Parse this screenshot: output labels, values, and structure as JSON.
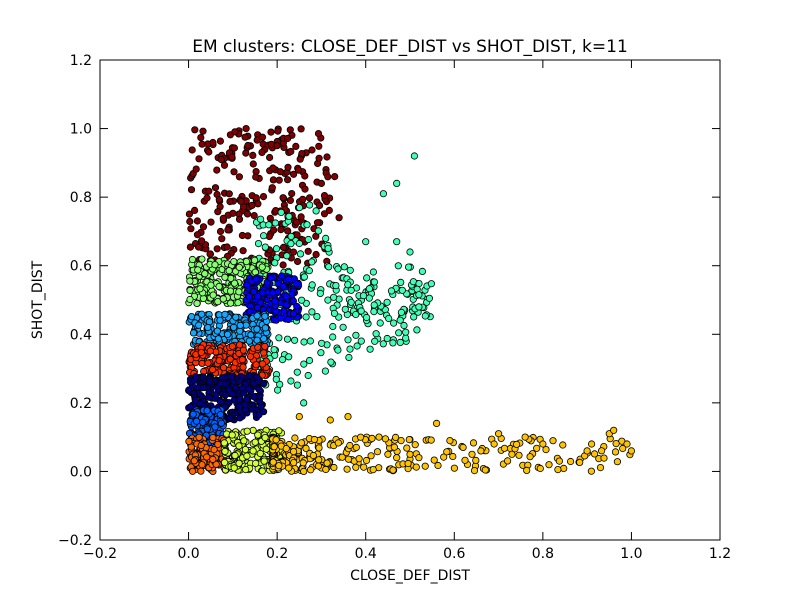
{
  "chart_data": {
    "type": "scatter",
    "title": "EM clusters: CLOSE_DEF_DIST vs SHOT_DIST, k=11",
    "xlabel": "CLOSE_DEF_DIST",
    "ylabel": "SHOT_DIST",
    "xlim": [
      -0.2,
      1.2
    ],
    "ylim": [
      -0.2,
      1.2
    ],
    "xticks": [
      "−0.2",
      "0.0",
      "0.2",
      "0.4",
      "0.6",
      "0.8",
      "1.0",
      "1.2"
    ],
    "yticks": [
      "−0.2",
      "0.0",
      "0.2",
      "0.4",
      "0.6",
      "0.8",
      "1.0",
      "1.2"
    ],
    "grid": false,
    "legend": "none",
    "marker_edge_color": "#000000",
    "clusters": [
      {
        "color": "#7f0000",
        "region": "top dense band",
        "x_range": [
          0.0,
          0.32
        ],
        "y_range": [
          0.6,
          1.0
        ]
      },
      {
        "color": "#40ffb7",
        "region": "right wedge",
        "x_range": [
          0.15,
          0.55
        ],
        "y_range": [
          0.2,
          0.92
        ]
      },
      {
        "color": "#87ff70",
        "region": "upper-middle",
        "x_range": [
          0.0,
          0.18
        ],
        "y_range": [
          0.49,
          0.62
        ]
      },
      {
        "color": "#0000ff",
        "region": "blue blob",
        "x_range": [
          0.13,
          0.25
        ],
        "y_range": [
          0.44,
          0.57
        ]
      },
      {
        "color": "#16a8ff",
        "region": "middle band",
        "x_range": [
          0.0,
          0.18
        ],
        "y_range": [
          0.37,
          0.46
        ]
      },
      {
        "color": "#ff3000",
        "region": "lower-middle band",
        "x_range": [
          0.0,
          0.18
        ],
        "y_range": [
          0.28,
          0.37
        ]
      },
      {
        "color": "#00007f",
        "region": "dark navy band",
        "x_range": [
          0.0,
          0.17
        ],
        "y_range": [
          0.15,
          0.28
        ]
      },
      {
        "color": "#0062ff",
        "region": "lower blue band",
        "x_range": [
          0.0,
          0.08
        ],
        "y_range": [
          0.08,
          0.18
        ]
      },
      {
        "color": "#ff6a00",
        "region": "bottom-left",
        "x_range": [
          0.0,
          0.09
        ],
        "y_range": [
          0.0,
          0.1
        ]
      },
      {
        "color": "#d0ff37",
        "region": "bottom-middle",
        "x_range": [
          0.08,
          0.21
        ],
        "y_range": [
          0.0,
          0.12
        ]
      },
      {
        "color": "#ffc300",
        "region": "bottom-right tail",
        "x_range": [
          0.19,
          1.0
        ],
        "y_range": [
          0.0,
          0.16
        ]
      }
    ],
    "outliers": [
      {
        "color": "#7f0000",
        "x": 0.13,
        "y": 1.0
      },
      {
        "color": "#7f0000",
        "x": 0.2,
        "y": 0.95
      },
      {
        "color": "#7f0000",
        "x": 0.3,
        "y": 0.84
      },
      {
        "color": "#7f0000",
        "x": 0.33,
        "y": 0.86
      },
      {
        "color": "#7f0000",
        "x": 0.34,
        "y": 0.74
      },
      {
        "color": "#40ffb7",
        "x": 0.51,
        "y": 0.92
      },
      {
        "color": "#40ffb7",
        "x": 0.47,
        "y": 0.84
      },
      {
        "color": "#40ffb7",
        "x": 0.44,
        "y": 0.81
      },
      {
        "color": "#40ffb7",
        "x": 0.4,
        "y": 0.67
      },
      {
        "color": "#40ffb7",
        "x": 0.47,
        "y": 0.67
      },
      {
        "color": "#40ffb7",
        "x": 0.5,
        "y": 0.64
      },
      {
        "color": "#40ffb7",
        "x": 0.52,
        "y": 0.48
      },
      {
        "color": "#40ffb7",
        "x": 0.39,
        "y": 0.38
      },
      {
        "color": "#40ffb7",
        "x": 0.26,
        "y": 0.2
      },
      {
        "color": "#ffc300",
        "x": 0.56,
        "y": 0.14
      },
      {
        "color": "#ffc300",
        "x": 0.59,
        "y": 0.09
      },
      {
        "color": "#ffc300",
        "x": 0.62,
        "y": 0.07
      },
      {
        "color": "#ffc300",
        "x": 0.64,
        "y": 0.05
      },
      {
        "color": "#ffc300",
        "x": 0.66,
        "y": 0.06
      },
      {
        "color": "#ffc300",
        "x": 0.69,
        "y": 0.08
      },
      {
        "color": "#ffc300",
        "x": 0.7,
        "y": 0.11
      },
      {
        "color": "#ffc300",
        "x": 0.73,
        "y": 0.05
      },
      {
        "color": "#ffc300",
        "x": 0.76,
        "y": 0.1
      },
      {
        "color": "#ffc300",
        "x": 0.8,
        "y": 0.08
      },
      {
        "color": "#ffc300",
        "x": 0.9,
        "y": 0.06
      },
      {
        "color": "#ffc300",
        "x": 0.91,
        "y": 0.08
      },
      {
        "color": "#ffc300",
        "x": 0.95,
        "y": 0.11
      },
      {
        "color": "#ffc300",
        "x": 0.96,
        "y": 0.12
      },
      {
        "color": "#ffc300",
        "x": 0.99,
        "y": 0.08
      },
      {
        "color": "#ffc300",
        "x": 1.0,
        "y": 0.06
      },
      {
        "color": "#ffc300",
        "x": 0.45,
        "y": 0.05
      },
      {
        "color": "#ffc300",
        "x": 0.47,
        "y": 0.04
      },
      {
        "color": "#ffc300",
        "x": 0.5,
        "y": 0.05
      },
      {
        "color": "#ffc300",
        "x": 0.52,
        "y": 0.04
      },
      {
        "color": "#ffc300",
        "x": 0.48,
        "y": 0.09
      },
      {
        "color": "#ffc300",
        "x": 0.43,
        "y": 0.1
      },
      {
        "color": "#ffc300",
        "x": 0.36,
        "y": 0.16
      },
      {
        "color": "#ffc300",
        "x": 0.32,
        "y": 0.15
      },
      {
        "color": "#ffc300",
        "x": 0.25,
        "y": 0.16
      },
      {
        "color": "#ffc300",
        "x": 0.26,
        "y": 0.0
      }
    ]
  }
}
